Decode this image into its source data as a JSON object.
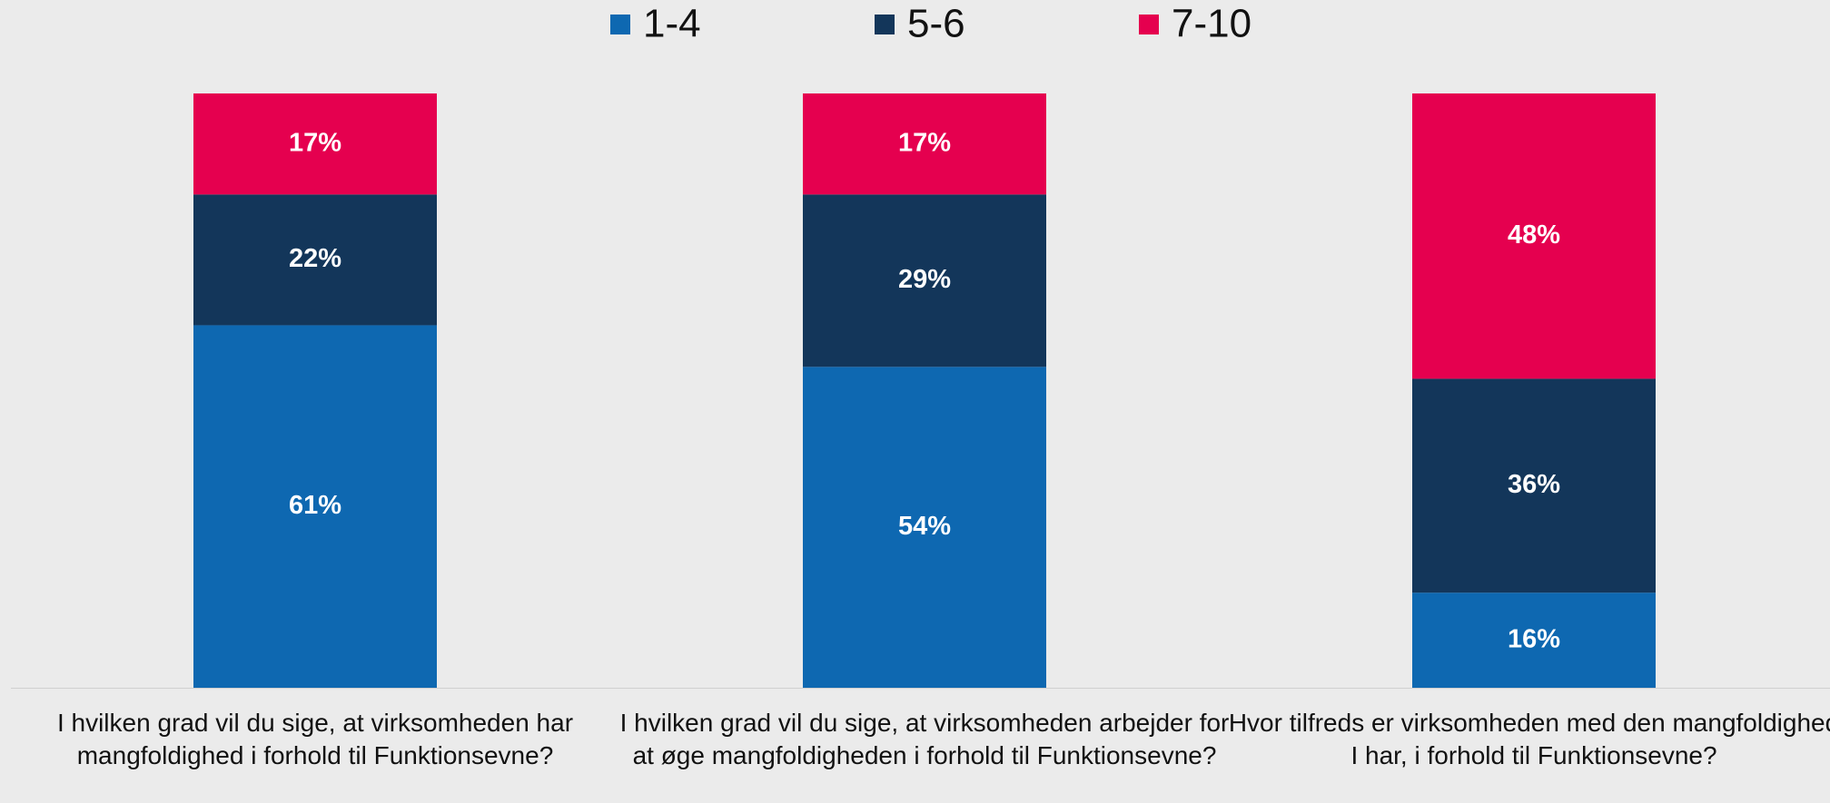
{
  "chart_data": {
    "type": "stacked_bar",
    "categories": [
      "I hvilken grad vil du sige, at virksomheden har mangfoldighed i forhold til Funktionsevne?",
      "I hvilken grad vil du sige, at virksomheden arbejder for at øge mangfoldigheden i forhold til Funktionsevne?",
      "Hvor tilfreds er virksomheden med den mangfoldighed I har, i forhold til Funktionsevne?"
    ],
    "series": [
      {
        "name": "1-4",
        "color": "#0e68b1",
        "values": [
          61,
          54,
          16
        ],
        "value_labels": [
          "61%",
          "54%",
          "16%"
        ]
      },
      {
        "name": "5-6",
        "color": "#13365a",
        "values": [
          22,
          29,
          36
        ],
        "value_labels": [
          "22%",
          "29%",
          "36%"
        ]
      },
      {
        "name": "7-10",
        "color": "#e5004f",
        "values": [
          17,
          17,
          48
        ],
        "value_labels": [
          "17%",
          "17%",
          "48%"
        ]
      }
    ],
    "ylim": [
      0,
      100
    ],
    "legend": "top"
  }
}
